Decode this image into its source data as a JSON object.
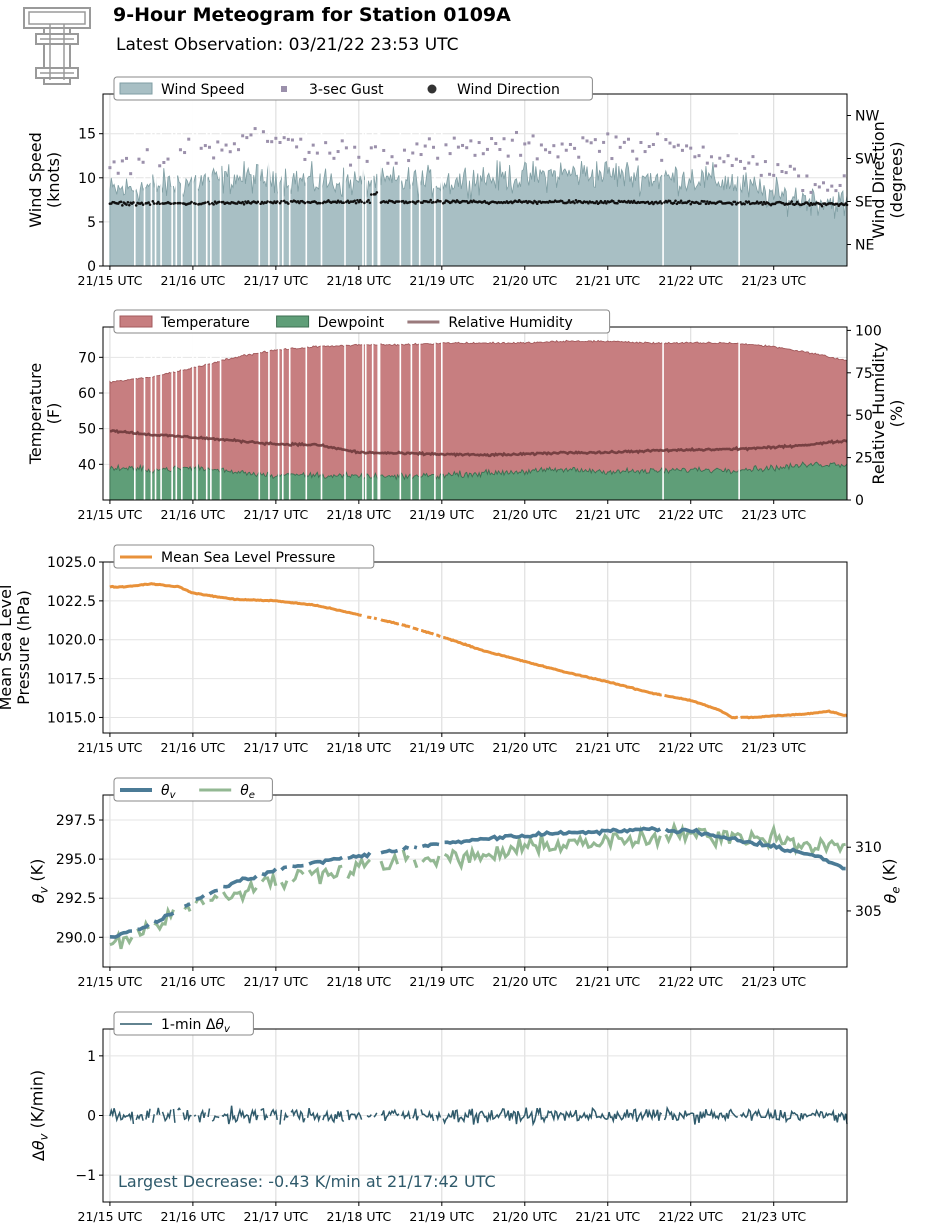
{
  "header": {
    "title": "9-Hour Meteogram for Station 0109A",
    "subtitle": "Latest Observation: 03/21/22 23:53 UTC"
  },
  "x_axis": {
    "range": [
      "15:00",
      "23:53"
    ],
    "tick_labels": [
      "21/15 UTC",
      "21/16 UTC",
      "21/17 UTC",
      "21/18 UTC",
      "21/19 UTC",
      "21/20 UTC",
      "21/21 UTC",
      "21/22 UTC",
      "21/23 UTC"
    ]
  },
  "colors": {
    "wind_speed": "#a8bfc4",
    "wind_speed_edge": "#7f9ea3",
    "gust": "#9b90ab",
    "wind_dir": "#111111",
    "temperature": "#c77e80",
    "temperature_edge": "#a35a5c",
    "dewpoint": "#5f9e78",
    "dewpoint_edge": "#3d6f52",
    "rh": "#6e3a3b",
    "mslp": "#e8913a",
    "theta_v": "#4b7b96",
    "theta_e": "#93b893",
    "dtheta": "#2f5a6b",
    "annotation": "#2f5a6b"
  },
  "chart_data": [
    {
      "type": "area",
      "id": "wind",
      "ylabel": "Wind Speed\n(knots)",
      "ylabel_right": "Wind Direction\n(degrees)",
      "ylim": [
        0,
        19.5
      ],
      "yticks": [
        0,
        5,
        10,
        15
      ],
      "right_ylim": [
        0,
        360
      ],
      "right_yticks": [
        {
          "value": 45,
          "label": "NE"
        },
        {
          "value": 135,
          "label": "SE"
        },
        {
          "value": 225,
          "label": "SW"
        },
        {
          "value": 315,
          "label": "NW"
        }
      ],
      "legend": [
        "Wind Speed",
        "3-sec Gust",
        "Wind Direction"
      ],
      "series": [
        {
          "name": "Wind Speed",
          "x": [
            "15:00",
            "15:30",
            "16:00",
            "16:30",
            "17:00",
            "17:30",
            "18:00",
            "18:30",
            "19:00",
            "19:30",
            "20:00",
            "20:30",
            "21:00",
            "21:30",
            "22:00",
            "22:30",
            "23:00",
            "23:30",
            "23:53"
          ],
          "values": [
            8.5,
            9,
            9.5,
            10,
            10,
            9.5,
            9.5,
            9.5,
            9.5,
            10,
            10,
            10.5,
            10.5,
            10,
            10,
            9.5,
            8,
            7.5,
            7
          ]
        },
        {
          "name": "3-sec Gust",
          "x": [
            "15:00",
            "15:30",
            "16:00",
            "16:30",
            "17:00",
            "17:30",
            "18:00",
            "18:30",
            "19:00",
            "19:30",
            "20:00",
            "20:30",
            "21:00",
            "21:30",
            "22:00",
            "22:30",
            "23:00",
            "23:30",
            "23:53"
          ],
          "values": [
            11,
            12,
            13.5,
            14,
            14.5,
            13,
            13,
            13,
            13,
            13.5,
            13.5,
            13.5,
            14,
            13.5,
            13,
            12.5,
            10.5,
            9.5,
            9
          ]
        },
        {
          "name": "Wind Direction",
          "x": [
            "15:00",
            "16:00",
            "17:00",
            "18:00",
            "19:00",
            "20:00",
            "21:00",
            "22:00",
            "23:00",
            "23:53"
          ],
          "values": [
            131,
            131,
            133,
            134,
            134,
            134,
            134,
            133,
            131,
            129
          ]
        }
      ]
    },
    {
      "type": "area",
      "id": "temp",
      "ylabel": "Temperature\n(F)",
      "ylabel_right": "Relative Humidity\n(%)",
      "ylim": [
        30,
        78.5
      ],
      "yticks": [
        40,
        50,
        60,
        70
      ],
      "right_ylim": [
        0,
        102
      ],
      "right_yticks": [
        {
          "value": 0,
          "label": "0"
        },
        {
          "value": 25,
          "label": "25"
        },
        {
          "value": 50,
          "label": "50"
        },
        {
          "value": 75,
          "label": "75"
        },
        {
          "value": 100,
          "label": "100"
        }
      ],
      "legend": [
        "Temperature",
        "Dewpoint",
        "Relative Humidity"
      ],
      "series": [
        {
          "name": "Temperature",
          "x": [
            "15:00",
            "15:30",
            "16:00",
            "16:30",
            "17:00",
            "17:30",
            "18:00",
            "18:30",
            "19:00",
            "19:30",
            "20:00",
            "20:30",
            "21:00",
            "21:30",
            "22:00",
            "22:30",
            "23:00",
            "23:30",
            "23:53"
          ],
          "values": [
            63,
            64.5,
            67,
            70,
            72,
            73,
            73.5,
            73.5,
            74,
            74,
            74,
            74.5,
            74.5,
            74,
            74,
            74,
            73,
            71,
            69
          ]
        },
        {
          "name": "Dewpoint",
          "x": [
            "15:00",
            "15:30",
            "16:00",
            "16:30",
            "17:00",
            "17:30",
            "18:00",
            "18:30",
            "19:00",
            "19:30",
            "20:00",
            "20:30",
            "21:00",
            "21:30",
            "22:00",
            "22:30",
            "23:00",
            "23:30",
            "23:53"
          ],
          "values": [
            39,
            38.5,
            39,
            38,
            37,
            37,
            36.5,
            36.5,
            37,
            37.5,
            38,
            38.5,
            38,
            38,
            38.5,
            38.5,
            39,
            40,
            40
          ]
        },
        {
          "name": "Relative Humidity",
          "x": [
            "15:00",
            "15:30",
            "16:00",
            "16:30",
            "17:00",
            "17:30",
            "18:00",
            "18:30",
            "19:00",
            "19:30",
            "20:00",
            "20:30",
            "21:00",
            "21:30",
            "22:00",
            "22:30",
            "23:00",
            "23:30",
            "23:53"
          ],
          "values": [
            41,
            38.5,
            37,
            35,
            33,
            32.5,
            28,
            27.5,
            27,
            26.5,
            27,
            28,
            28,
            29,
            29.5,
            30,
            31,
            33,
            35
          ]
        }
      ]
    },
    {
      "type": "line",
      "id": "mslp",
      "ylabel": "Mean Sea Level\nPressure (hPa)",
      "ylim": [
        1014,
        1025
      ],
      "yticks": [
        1015.0,
        1017.5,
        1020.0,
        1022.5,
        1025.0
      ],
      "tick_labels": [
        "1015.0",
        "1017.5",
        "1020.0",
        "1022.5",
        "1025.0"
      ],
      "legend": [
        "Mean Sea Level Pressure"
      ],
      "series": [
        {
          "name": "Mean Sea Level Pressure",
          "x": [
            "15:00",
            "15:10",
            "15:30",
            "15:50",
            "16:00",
            "16:30",
            "17:00",
            "17:30",
            "18:00",
            "18:30",
            "19:00",
            "19:30",
            "20:00",
            "20:30",
            "21:00",
            "21:30",
            "22:00",
            "22:20",
            "22:30",
            "22:45",
            "23:00",
            "23:20",
            "23:40",
            "23:53"
          ],
          "values": [
            1023.4,
            1023.4,
            1023.6,
            1023.4,
            1023.0,
            1022.6,
            1022.5,
            1022.2,
            1021.6,
            1021.0,
            1020.2,
            1019.3,
            1018.6,
            1017.9,
            1017.3,
            1016.6,
            1016.1,
            1015.5,
            1015.0,
            1015.0,
            1015.1,
            1015.2,
            1015.4,
            1015.1
          ]
        }
      ]
    },
    {
      "type": "line",
      "id": "theta",
      "ylabel": "θv (K)",
      "ylabel_right": "θe (K)",
      "ylim": [
        288.1,
        299.1
      ],
      "yticks": [
        290.0,
        292.5,
        295.0,
        297.5
      ],
      "tick_labels": [
        "290.0",
        "292.5",
        "295.0",
        "297.5"
      ],
      "right_ylim": [
        300.6,
        314.1
      ],
      "right_yticks": [
        {
          "value": 305,
          "label": "305"
        },
        {
          "value": 310,
          "label": "310"
        }
      ],
      "legend": [
        "θv",
        "θe"
      ],
      "series": [
        {
          "name": "θv",
          "x": [
            "15:00",
            "15:30",
            "16:00",
            "16:30",
            "17:00",
            "17:30",
            "18:00",
            "18:30",
            "19:00",
            "19:30",
            "20:00",
            "20:30",
            "21:00",
            "21:30",
            "22:00",
            "22:30",
            "23:00",
            "23:30",
            "23:53"
          ],
          "values": [
            290.0,
            290.8,
            292.3,
            293.5,
            294.3,
            294.8,
            295.2,
            295.6,
            296.0,
            296.3,
            296.5,
            296.7,
            296.8,
            296.9,
            296.8,
            296.3,
            295.8,
            295.2,
            294.4
          ]
        },
        {
          "name": "θe",
          "x": [
            "15:00",
            "15:30",
            "16:00",
            "16:30",
            "17:00",
            "17:30",
            "18:00",
            "18:30",
            "19:00",
            "19:30",
            "20:00",
            "20:30",
            "21:00",
            "21:30",
            "22:00",
            "22:30",
            "23:00",
            "23:30",
            "23:53"
          ],
          "values": [
            302.5,
            303.8,
            305.6,
            306.4,
            307.3,
            308.0,
            308.5,
            308.9,
            309.0,
            309.3,
            309.9,
            310.4,
            310.4,
            310.6,
            311.0,
            310.9,
            310.8,
            310.2,
            309.8
          ]
        }
      ]
    },
    {
      "type": "line",
      "id": "dtheta",
      "ylabel": "Δθv (K/min)",
      "ylim": [
        -1.45,
        1.45
      ],
      "yticks": [
        -1,
        0,
        1
      ],
      "tick_labels": [
        "−1",
        "0",
        "1"
      ],
      "legend": [
        "1-min Δθv"
      ],
      "annotation": "Largest Decrease: -0.43 K/min at 21/17:42 UTC",
      "series": [
        {
          "name": "1-min Δθv",
          "x": [
            "15:00",
            "23:53"
          ],
          "amplitude": [
            0.2,
            0.15
          ],
          "mean": 0.0
        }
      ]
    }
  ]
}
